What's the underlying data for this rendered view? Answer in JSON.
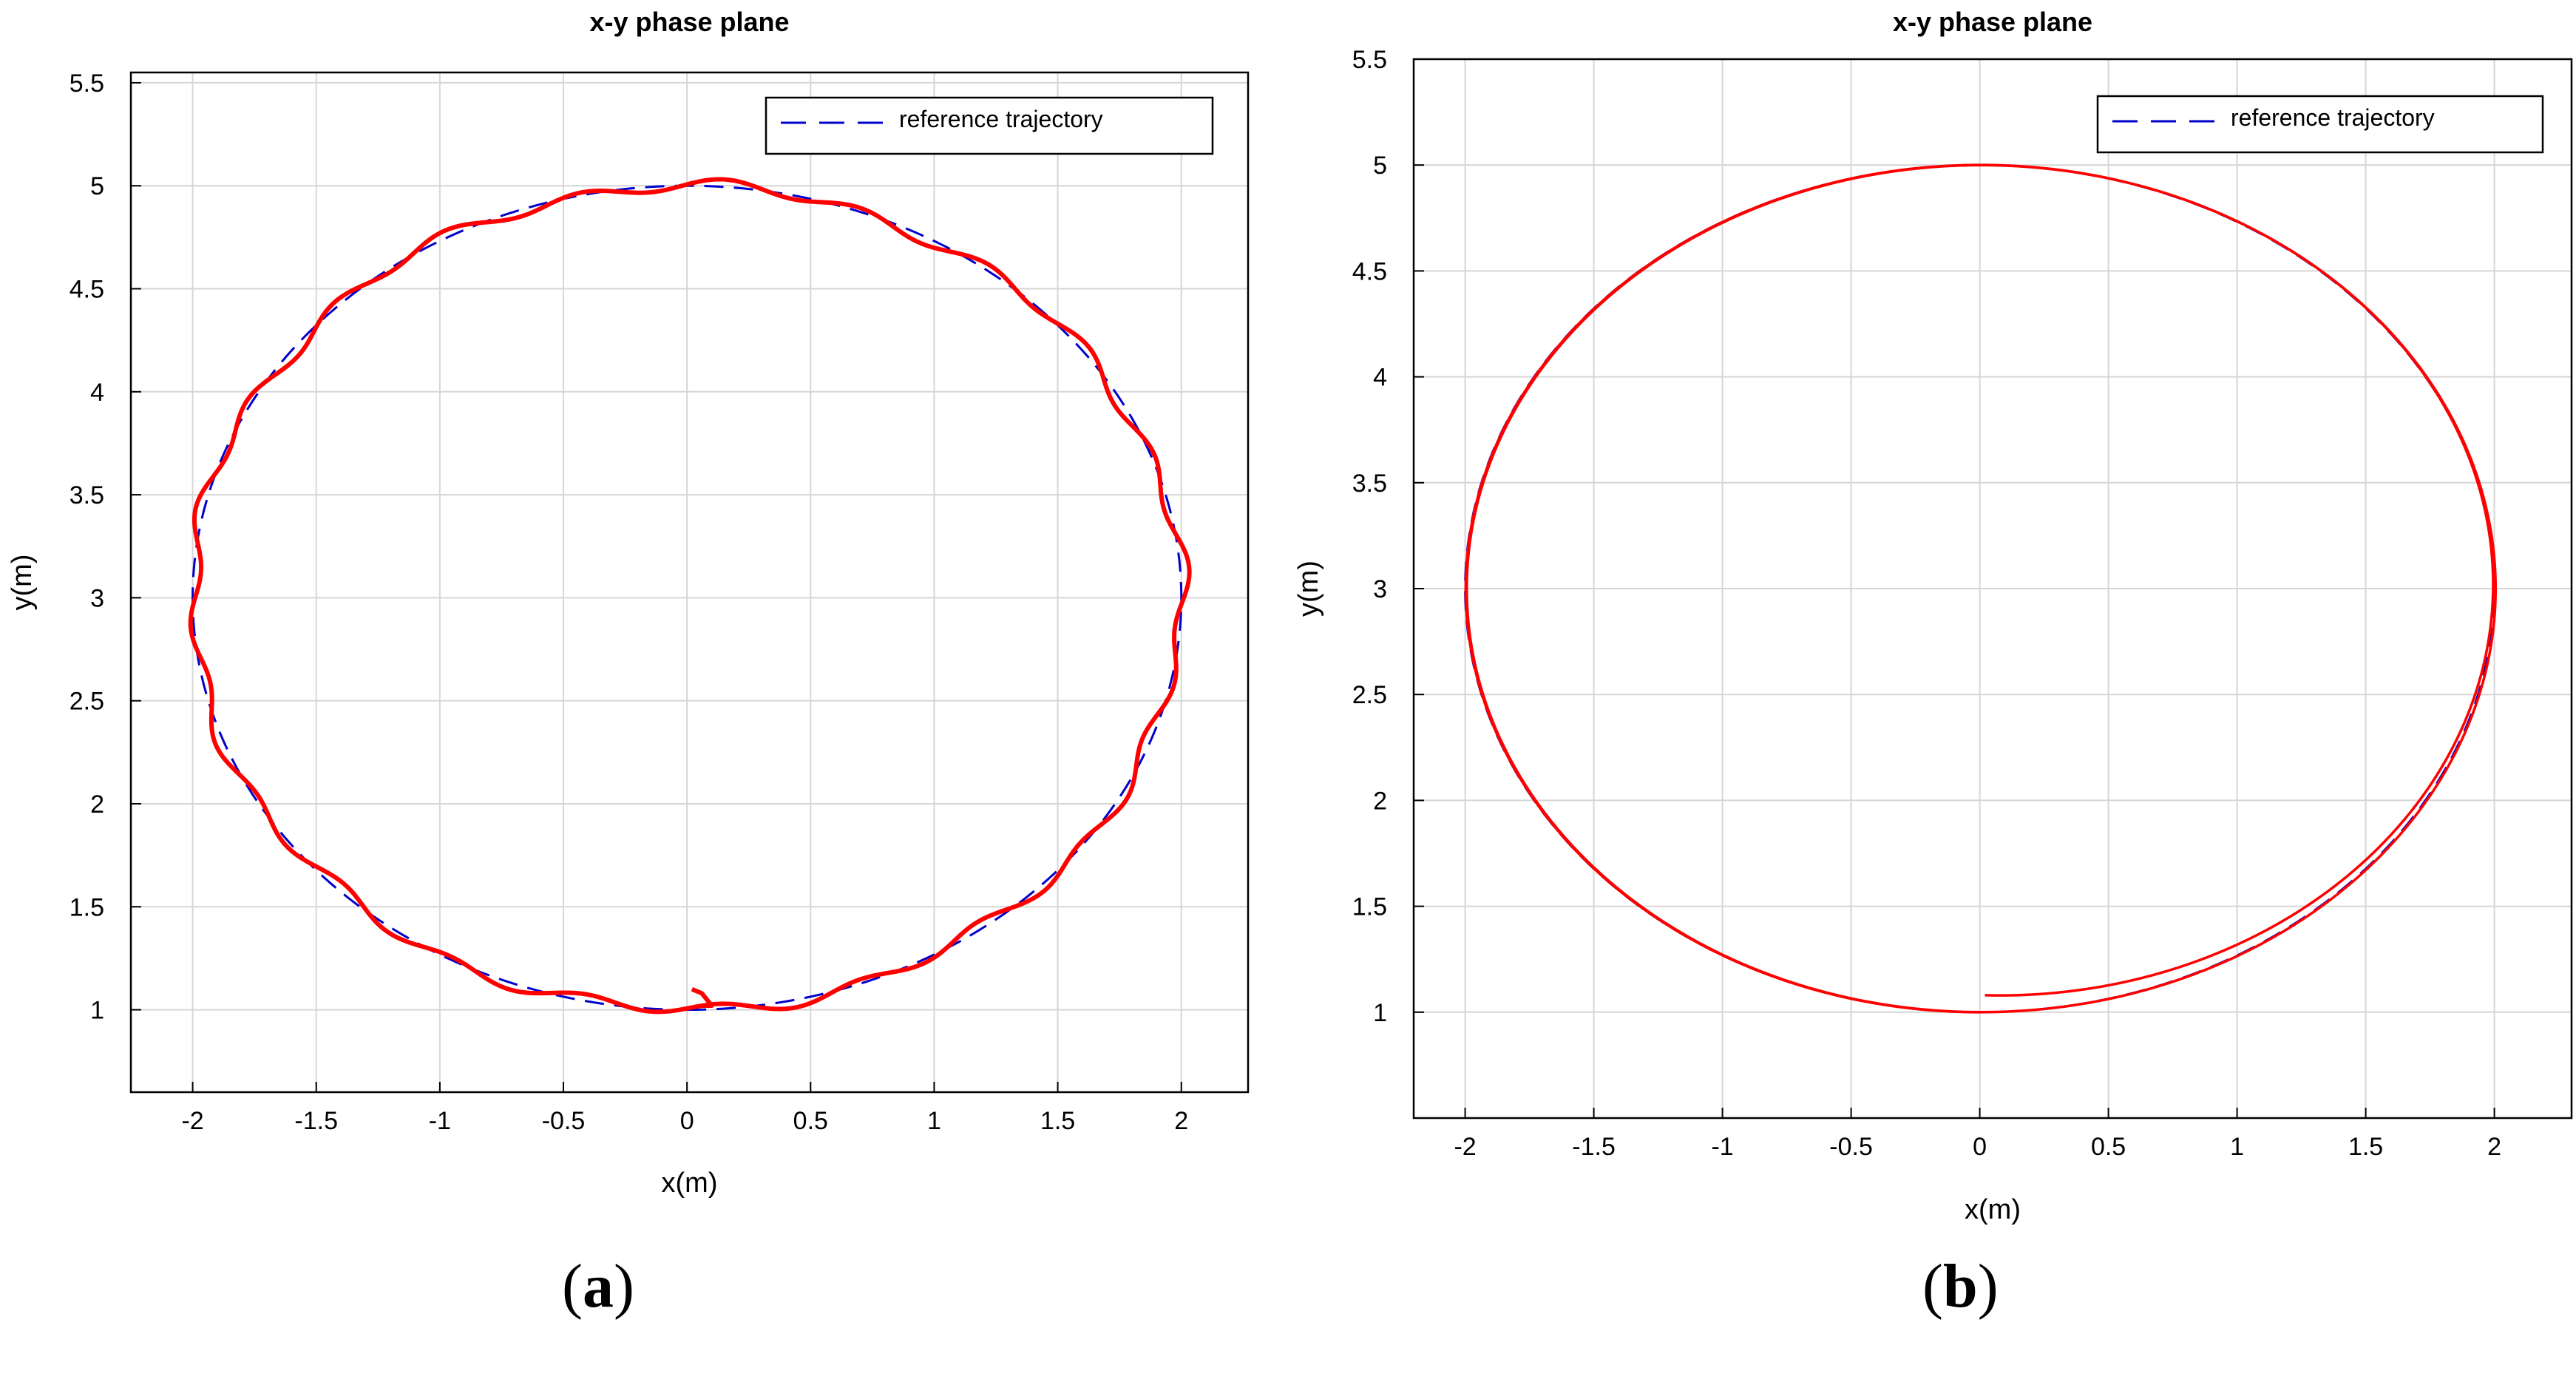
{
  "chart_data": [
    {
      "type": "line",
      "panel_label": "a",
      "title": "x-y phase plane",
      "xlabel": "x(m)",
      "ylabel": "y(m)",
      "xlim": [
        -2.25,
        2.27
      ],
      "ylim": [
        0.6,
        5.55
      ],
      "xticks": [
        -2,
        -1.5,
        -1,
        -0.5,
        0,
        0.5,
        1,
        1.5,
        2
      ],
      "yticks": [
        1,
        1.5,
        2,
        2.5,
        3,
        3.5,
        4,
        4.5,
        5,
        5.5
      ],
      "xtick_labels": [
        "-2",
        "-1.5",
        "-1",
        "-0.5",
        "0",
        "0.5",
        "1",
        "1.5",
        "2"
      ],
      "ytick_labels": [
        "1",
        "1.5",
        "2",
        "2.5",
        "3",
        "3.5",
        "4",
        "4.5",
        "5",
        "5.5"
      ],
      "grid": true,
      "legend": {
        "entries": [
          "reference trajectory"
        ],
        "placement": "top-right"
      },
      "series": [
        {
          "name": "reference trajectory",
          "style": "dashed",
          "color": "#0000cc",
          "shape": "ellipse",
          "center": [
            0,
            3
          ],
          "radius_x": 2,
          "radius_y": 2
        },
        {
          "style": "solid",
          "color": "#ff0000",
          "shape": "ellipse with oscillation",
          "center": [
            0,
            3
          ],
          "radius_x": 2,
          "radius_y": 2,
          "start_point": [
            0.02,
            1.1
          ]
        }
      ]
    },
    {
      "type": "line",
      "panel_label": "b",
      "title": "x-y phase plane",
      "xlabel": "x(m)",
      "ylabel": "y(m)",
      "xlim": [
        -2.2,
        2.3
      ],
      "ylim": [
        0.5,
        5.5
      ],
      "xticks": [
        -2,
        -1.5,
        -1,
        -0.5,
        0,
        0.5,
        1,
        1.5,
        2
      ],
      "yticks": [
        1,
        1.5,
        2,
        2.5,
        3,
        3.5,
        4,
        4.5,
        5,
        5.5
      ],
      "xtick_labels": [
        "-2",
        "-1.5",
        "-1",
        "-0.5",
        "0",
        "0.5",
        "1",
        "1.5",
        "2"
      ],
      "ytick_labels": [
        "1",
        "1.5",
        "2",
        "2.5",
        "3",
        "3.5",
        "4",
        "4.5",
        "5",
        "5.5"
      ],
      "grid": true,
      "legend": {
        "entries": [
          "reference trajectory"
        ],
        "placement": "top-right"
      },
      "series": [
        {
          "name": "reference trajectory",
          "style": "dashed",
          "color": "#0000cc",
          "shape": "ellipse",
          "center": [
            0,
            3
          ],
          "radius_x": 2,
          "radius_y": 2
        },
        {
          "style": "solid",
          "color": "#ff0000",
          "shape": "converging spiral",
          "center": [
            0,
            3
          ],
          "radius_x": 2,
          "radius_y": 2,
          "start_point": [
            0,
            1.1
          ]
        }
      ]
    }
  ]
}
